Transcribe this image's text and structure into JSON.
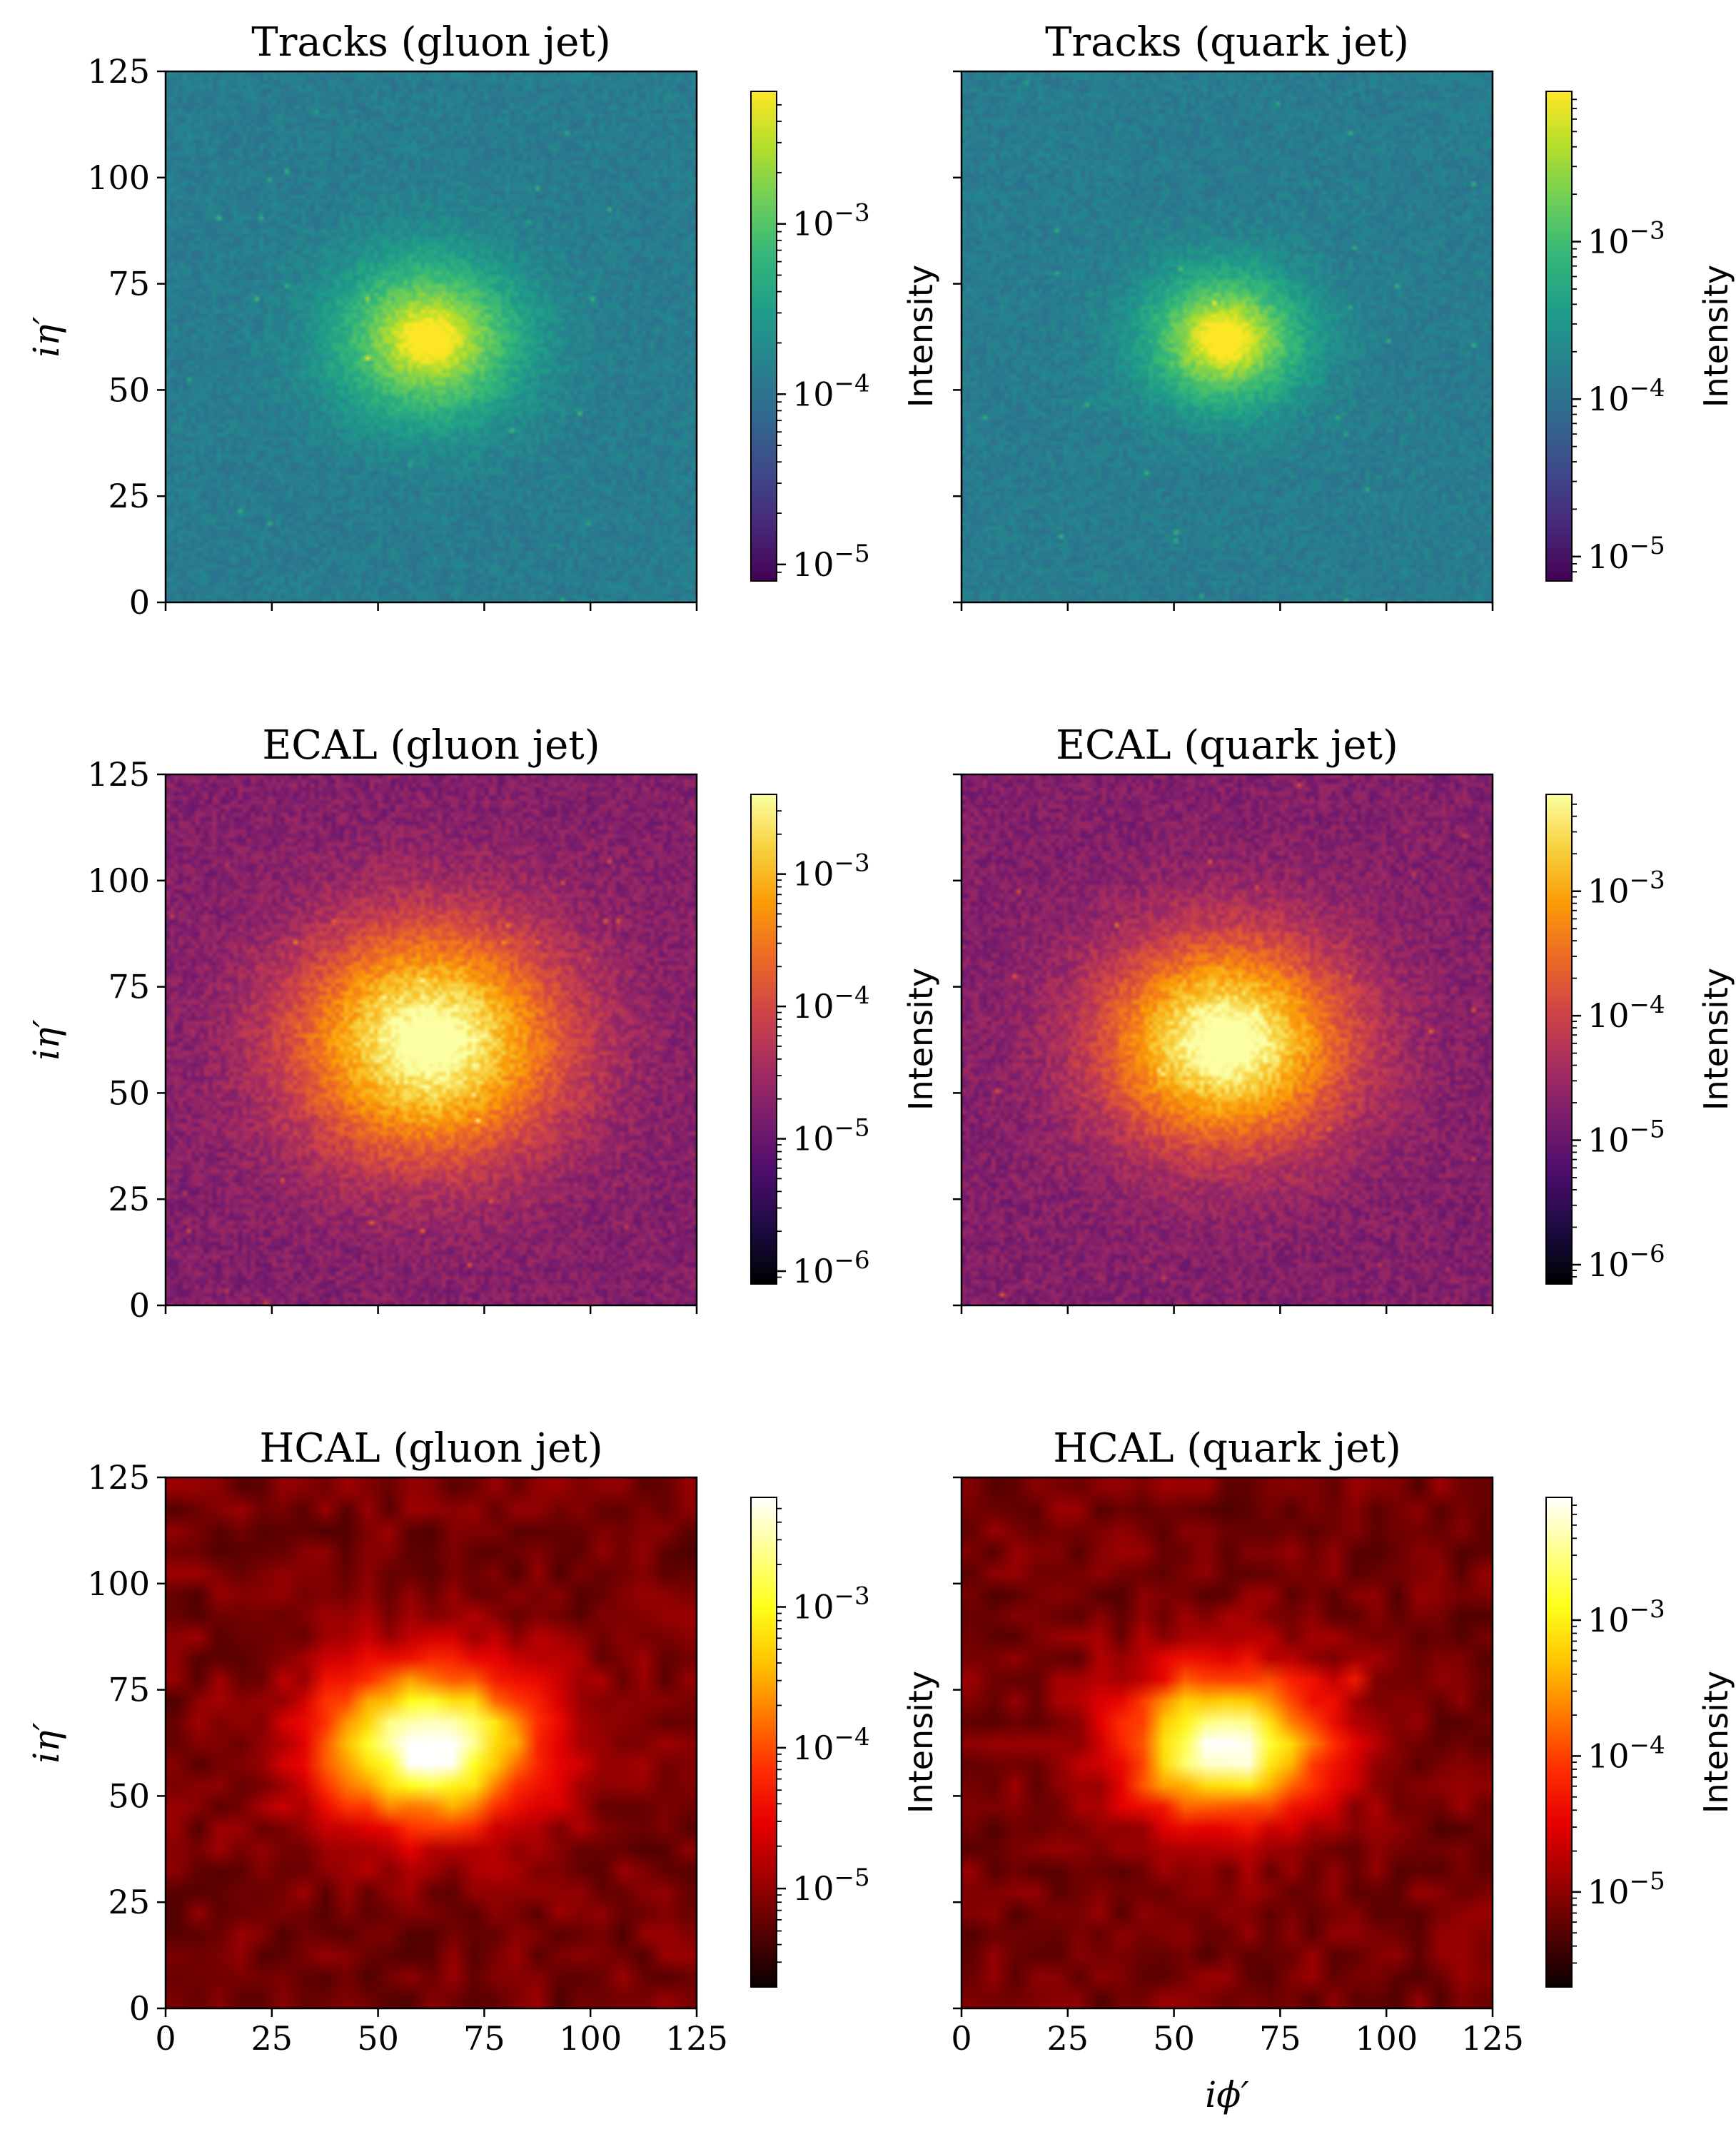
{
  "chart_data": [
    {
      "type": "heatmap",
      "title": "Tracks (gluon jet)",
      "xlabel": "",
      "ylabel": "iη′",
      "colormap": "viridis",
      "xlim": [
        0,
        125
      ],
      "ylim": [
        0,
        125
      ],
      "xticks": [
        0,
        25,
        50,
        75,
        100,
        125
      ],
      "yticks": [
        0,
        25,
        50,
        75,
        100,
        125
      ],
      "grid": false,
      "peak": {
        "x": 62,
        "y": 62
      },
      "colorbar": {
        "label": "Intensity",
        "scale": "log",
        "range": [
          8e-06,
          0.006
        ],
        "ticks": [
          {
            "value": 1e-05,
            "base": "10",
            "exp": "−5"
          },
          {
            "value": 0.0001,
            "base": "10",
            "exp": "−4"
          },
          {
            "value": 0.001,
            "base": "10",
            "exp": "−3"
          }
        ]
      }
    },
    {
      "type": "heatmap",
      "title": "Tracks (quark jet)",
      "xlabel": "",
      "ylabel": "",
      "colormap": "viridis",
      "xlim": [
        0,
        125
      ],
      "ylim": [
        0,
        125
      ],
      "xticks": [
        0,
        25,
        50,
        75,
        100,
        125
      ],
      "yticks": [
        0,
        25,
        50,
        75,
        100,
        125
      ],
      "grid": false,
      "peak": {
        "x": 62,
        "y": 62
      },
      "colorbar": {
        "label": "Intensity",
        "scale": "log",
        "range": [
          7e-06,
          0.009
        ],
        "ticks": [
          {
            "value": 1e-05,
            "base": "10",
            "exp": "−5"
          },
          {
            "value": 0.0001,
            "base": "10",
            "exp": "−4"
          },
          {
            "value": 0.001,
            "base": "10",
            "exp": "−3"
          }
        ]
      }
    },
    {
      "type": "heatmap",
      "title": "ECAL (gluon jet)",
      "xlabel": "",
      "ylabel": "iη′",
      "colormap": "inferno",
      "xlim": [
        0,
        125
      ],
      "ylim": [
        0,
        125
      ],
      "xticks": [
        0,
        25,
        50,
        75,
        100,
        125
      ],
      "yticks": [
        0,
        25,
        50,
        75,
        100,
        125
      ],
      "grid": false,
      "peak": {
        "x": 62,
        "y": 62
      },
      "colorbar": {
        "label": "Intensity",
        "scale": "log",
        "range": [
          8e-07,
          0.004
        ],
        "ticks": [
          {
            "value": 1e-06,
            "base": "10",
            "exp": "−6"
          },
          {
            "value": 1e-05,
            "base": "10",
            "exp": "−5"
          },
          {
            "value": 0.0001,
            "base": "10",
            "exp": "−4"
          },
          {
            "value": 0.001,
            "base": "10",
            "exp": "−3"
          }
        ]
      }
    },
    {
      "type": "heatmap",
      "title": "ECAL (quark jet)",
      "xlabel": "",
      "ylabel": "",
      "colormap": "inferno",
      "xlim": [
        0,
        125
      ],
      "ylim": [
        0,
        125
      ],
      "xticks": [
        0,
        25,
        50,
        75,
        100,
        125
      ],
      "yticks": [
        0,
        25,
        50,
        75,
        100,
        125
      ],
      "grid": false,
      "peak": {
        "x": 62,
        "y": 62
      },
      "colorbar": {
        "label": "Intensity",
        "scale": "log",
        "range": [
          7e-07,
          0.006
        ],
        "ticks": [
          {
            "value": 1e-06,
            "base": "10",
            "exp": "−6"
          },
          {
            "value": 1e-05,
            "base": "10",
            "exp": "−5"
          },
          {
            "value": 0.0001,
            "base": "10",
            "exp": "−4"
          },
          {
            "value": 0.001,
            "base": "10",
            "exp": "−3"
          }
        ]
      }
    },
    {
      "type": "heatmap",
      "title": "HCAL (gluon jet)",
      "xlabel": "",
      "ylabel": "iη′",
      "colormap": "hot",
      "xlim": [
        0,
        125
      ],
      "ylim": [
        0,
        125
      ],
      "xticks": [
        0,
        25,
        50,
        75,
        100,
        125
      ],
      "yticks": [
        0,
        25,
        50,
        75,
        100,
        125
      ],
      "grid": false,
      "peak": {
        "x": 62,
        "y": 62
      },
      "colorbar": {
        "label": "Intensity",
        "scale": "log",
        "range": [
          2e-06,
          0.006
        ],
        "ticks": [
          {
            "value": 1e-05,
            "base": "10",
            "exp": "−5"
          },
          {
            "value": 0.0001,
            "base": "10",
            "exp": "−4"
          },
          {
            "value": 0.001,
            "base": "10",
            "exp": "−3"
          }
        ]
      }
    },
    {
      "type": "heatmap",
      "title": "HCAL (quark jet)",
      "xlabel": "iϕ′",
      "ylabel": "",
      "colormap": "hot",
      "xlim": [
        0,
        125
      ],
      "ylim": [
        0,
        125
      ],
      "xticks": [
        0,
        25,
        50,
        75,
        100,
        125
      ],
      "yticks": [
        0,
        25,
        50,
        75,
        100,
        125
      ],
      "grid": false,
      "peak": {
        "x": 62,
        "y": 62
      },
      "colorbar": {
        "label": "Intensity",
        "scale": "log",
        "range": [
          2e-06,
          0.008
        ],
        "ticks": [
          {
            "value": 1e-05,
            "base": "10",
            "exp": "−5"
          },
          {
            "value": 0.0001,
            "base": "10",
            "exp": "−4"
          },
          {
            "value": 0.001,
            "base": "10",
            "exp": "−3"
          }
        ]
      }
    }
  ]
}
